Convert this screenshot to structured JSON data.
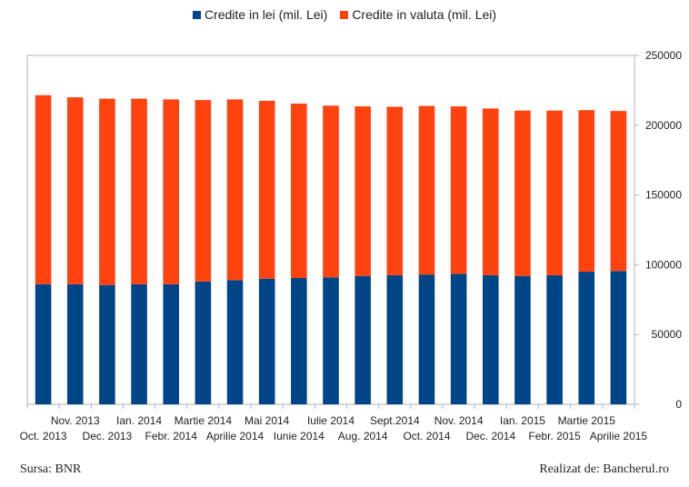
{
  "chart_data": {
    "type": "bar",
    "stacked": true,
    "categories": [
      "Oct. 2013",
      "Nov. 2013",
      "Dec. 2013",
      "Ian. 2014",
      "Febr. 2014",
      "Martie 2014",
      "Aprilie 2014",
      "Mai 2014",
      "Iunie 2014",
      "Iulie 2014",
      "Aug. 2014",
      "Sept.2014",
      "Oct. 2014",
      "Nov. 2014",
      "Dec. 2014",
      "Ian. 2015",
      "Febr. 2015",
      "Martie 2015",
      "Aprilie 2015"
    ],
    "series": [
      {
        "name": "Credite in lei (mil. Lei)",
        "color": "#004586",
        "values": [
          86000,
          86000,
          85500,
          86000,
          86000,
          88000,
          89000,
          90000,
          90500,
          91000,
          92000,
          92500,
          93000,
          93500,
          92500,
          92000,
          92500,
          95000,
          95500
        ]
      },
      {
        "name": "Credite in valuta (mil. Lei)",
        "color": "#ff420e",
        "values": [
          135500,
          134000,
          133500,
          133000,
          132500,
          130000,
          129500,
          127500,
          125000,
          123000,
          121500,
          120700,
          120800,
          120000,
          119500,
          118500,
          118000,
          115800,
          114700
        ]
      }
    ],
    "ylim": [
      0,
      250000
    ],
    "yticks": [
      0,
      50000,
      100000,
      150000,
      200000,
      250000
    ],
    "y_axis_side": "right",
    "grid": "none",
    "legend": "top"
  },
  "footer": {
    "source": "Sursa: BNR",
    "credit": "Realizat de: Bancherul.ro"
  }
}
